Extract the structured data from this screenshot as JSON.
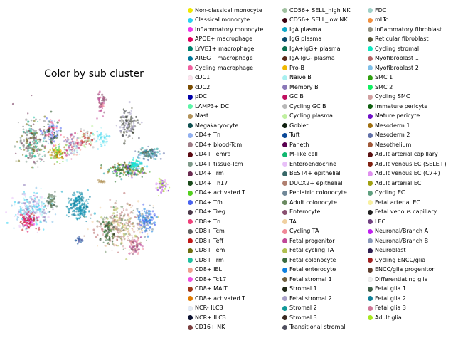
{
  "chart_data": {
    "type": "scatter",
    "title": "Color by sub cluster",
    "xlabel": "",
    "ylabel": "",
    "grid": false,
    "axes_visible": false,
    "legend_placement": "right",
    "series": [
      {
        "name": "Non-classical monocyte",
        "color": "#f0e800"
      },
      {
        "name": "Classical monocyte",
        "color": "#2bd1f2"
      },
      {
        "name": "Inflammatory monocyte",
        "color": "#f038e8"
      },
      {
        "name": "APOE+ macrophage",
        "color": "#e0005e"
      },
      {
        "name": "LYVE1+ macrophage",
        "color": "#00836e"
      },
      {
        "name": "AREG+ macrophage",
        "color": "#00789c"
      },
      {
        "name": "Cycling macrophage",
        "color": "#f062a0"
      },
      {
        "name": "cDC1",
        "color": "#fde3ee"
      },
      {
        "name": "cDC2",
        "color": "#7a4c00"
      },
      {
        "name": "pDC",
        "color": "#0000a8"
      },
      {
        "name": "LAMP3+ DC",
        "color": "#5ef5a8"
      },
      {
        "name": "Mast",
        "color": "#b3935a"
      },
      {
        "name": "Megakaryocyte",
        "color": "#0f5050"
      },
      {
        "name": "CD4+ Tn",
        "color": "#91b0f0"
      },
      {
        "name": "CD4+ blood-Tcm",
        "color": "#9e7d86"
      },
      {
        "name": "CD4+ Temra",
        "color": "#5a0810"
      },
      {
        "name": "CD4+ tissue-Tcm",
        "color": "#7f9a8a"
      },
      {
        "name": "CD4+ Trm",
        "color": "#6a2a50"
      },
      {
        "name": "CD4+ Th17",
        "color": "#1a4a1a"
      },
      {
        "name": "CD4+ activated T",
        "color": "#55d020"
      },
      {
        "name": "CD4+ Tfh",
        "color": "#4a63f0"
      },
      {
        "name": "CD4+ Treg",
        "color": "#4a3848"
      },
      {
        "name": "CD8+ Tn",
        "color": "#f0407a"
      },
      {
        "name": "CD8+ Tcm",
        "color": "#5f5f5f"
      },
      {
        "name": "CD8+ Teff",
        "color": "#c01818"
      },
      {
        "name": "CD8+ Tem",
        "color": "#6e6e10"
      },
      {
        "name": "CD8+ Trm",
        "color": "#20c0a0"
      },
      {
        "name": "CD8+ IEL",
        "color": "#f0a090"
      },
      {
        "name": "CD8+ Tc17",
        "color": "#f050e0"
      },
      {
        "name": "CD8+ MAIT",
        "color": "#a03818"
      },
      {
        "name": "CD8+ activated T",
        "color": "#e07a00"
      },
      {
        "name": "NCR- ILC3",
        "color": "#e4ecf8"
      },
      {
        "name": "NCR+ ILC3",
        "color": "#0a1030"
      },
      {
        "name": "CD16+ NK",
        "color": "#7a4040"
      },
      {
        "name": "CD56+ SELL_high NK",
        "color": "#a0c0a0"
      },
      {
        "name": "CD56+ SELL_low NK",
        "color": "#3a0010"
      },
      {
        "name": "IgA plasma",
        "color": "#10a8c8"
      },
      {
        "name": "IgG plasma",
        "color": "#0a4a6a"
      },
      {
        "name": "IgA+IgG+ plasma",
        "color": "#0a7050"
      },
      {
        "name": "IgA-IgG- plasma",
        "color": "#5a2818"
      },
      {
        "name": "Pro-B",
        "color": "#f0b800"
      },
      {
        "name": "Naive B",
        "color": "#a8f0f0"
      },
      {
        "name": "Memory B",
        "color": "#8a78b8"
      },
      {
        "name": "GC B",
        "color": "#c01060"
      },
      {
        "name": "Cycling GC B",
        "color": "#b8b8b8"
      },
      {
        "name": "Cycling plasma",
        "color": "#c0f0a0"
      },
      {
        "name": "Goblet",
        "color": "#102010"
      },
      {
        "name": "Tuft",
        "color": "#0a4898"
      },
      {
        "name": "Paneth",
        "color": "#5a0050"
      },
      {
        "name": "M-like cell",
        "color": "#10b870"
      },
      {
        "name": "Enteroendocrine",
        "color": "#e8c0f8"
      },
      {
        "name": "BEST4+ epithelial",
        "color": "#386868"
      },
      {
        "name": "DUOX2+ epithelial",
        "color": "#b08070"
      },
      {
        "name": "Pediatric colonocyte",
        "color": "#708898"
      },
      {
        "name": "Adult colonocyte",
        "color": "#6a8a60"
      },
      {
        "name": "Enterocyte",
        "color": "#8a5070"
      },
      {
        "name": "TA",
        "color": "#f0d0a0"
      },
      {
        "name": "Cycling TA",
        "color": "#f08898"
      },
      {
        "name": "Fetal progenitor",
        "color": "#c04898"
      },
      {
        "name": "Fetal cycling TA",
        "color": "#b0c050"
      },
      {
        "name": "Fetal colonocyte",
        "color": "#3a6a40"
      },
      {
        "name": "Fetal enterocyte",
        "color": "#1080e0"
      },
      {
        "name": "Fetal stromal 1",
        "color": "#706040"
      },
      {
        "name": "Stromal 1",
        "color": "#202818"
      },
      {
        "name": "Fetal stromal 2",
        "color": "#a8a0c8"
      },
      {
        "name": "Stromal 2",
        "color": "#109898"
      },
      {
        "name": "Stromal 3",
        "color": "#3a2820"
      },
      {
        "name": "Transitional stromal",
        "color": "#505060"
      },
      {
        "name": "FDC",
        "color": "#a0d0c8"
      },
      {
        "name": "mLTo",
        "color": "#f09040"
      },
      {
        "name": "Inflammatory fibroblast",
        "color": "#909080"
      },
      {
        "name": "Reticular fibroblast",
        "color": "#5a5a3a"
      },
      {
        "name": "Cycling stromal",
        "color": "#10e8c0"
      },
      {
        "name": "Myofibroblast 1",
        "color": "#b86868"
      },
      {
        "name": "Myofibroblast 2",
        "color": "#80c0e8"
      },
      {
        "name": "SMC 1",
        "color": "#30a010"
      },
      {
        "name": "SMC 2",
        "color": "#10f060"
      },
      {
        "name": "Cycling SMC",
        "color": "#d0a0a0"
      },
      {
        "name": "Immature pericyte",
        "color": "#106010"
      },
      {
        "name": "Mature pericyte",
        "color": "#7010c8"
      },
      {
        "name": "Mesoderm 1",
        "color": "#a07010"
      },
      {
        "name": "Mesoderm 2",
        "color": "#6070a8"
      },
      {
        "name": "Mesothelium",
        "color": "#a05838"
      },
      {
        "name": "Adult arterial capillary",
        "color": "#5a1010"
      },
      {
        "name": "Adult venous EC (SELE+)",
        "color": "#802010"
      },
      {
        "name": "Adult venous EC (C7+)",
        "color": "#e090f0"
      },
      {
        "name": "Adult arterial EC",
        "color": "#a0a010"
      },
      {
        "name": "Cycling EC",
        "color": "#60a080"
      },
      {
        "name": "Fetal arterial EC",
        "color": "#f8f0a0"
      },
      {
        "name": "Fetal venous capillary",
        "color": "#202020"
      },
      {
        "name": "LEC",
        "color": "#704080"
      },
      {
        "name": "Neuronal/Branch A",
        "color": "#c020f0"
      },
      {
        "name": "Neuronal/Branch B",
        "color": "#8898b8"
      },
      {
        "name": "Neuroblast",
        "color": "#302050"
      },
      {
        "name": "Cycling ENCC/glia",
        "color": "#a02020"
      },
      {
        "name": "ENCC/glia progenitor",
        "color": "#604030"
      },
      {
        "name": "Differentiating glia",
        "color": "#f0f0f0"
      },
      {
        "name": "Fetal glia 1",
        "color": "#40604a"
      },
      {
        "name": "Fetal glia 2",
        "color": "#108098"
      },
      {
        "name": "Fetal glia 3",
        "color": "#d07898"
      },
      {
        "name": "Adult glia",
        "color": "#a8e820"
      }
    ]
  }
}
